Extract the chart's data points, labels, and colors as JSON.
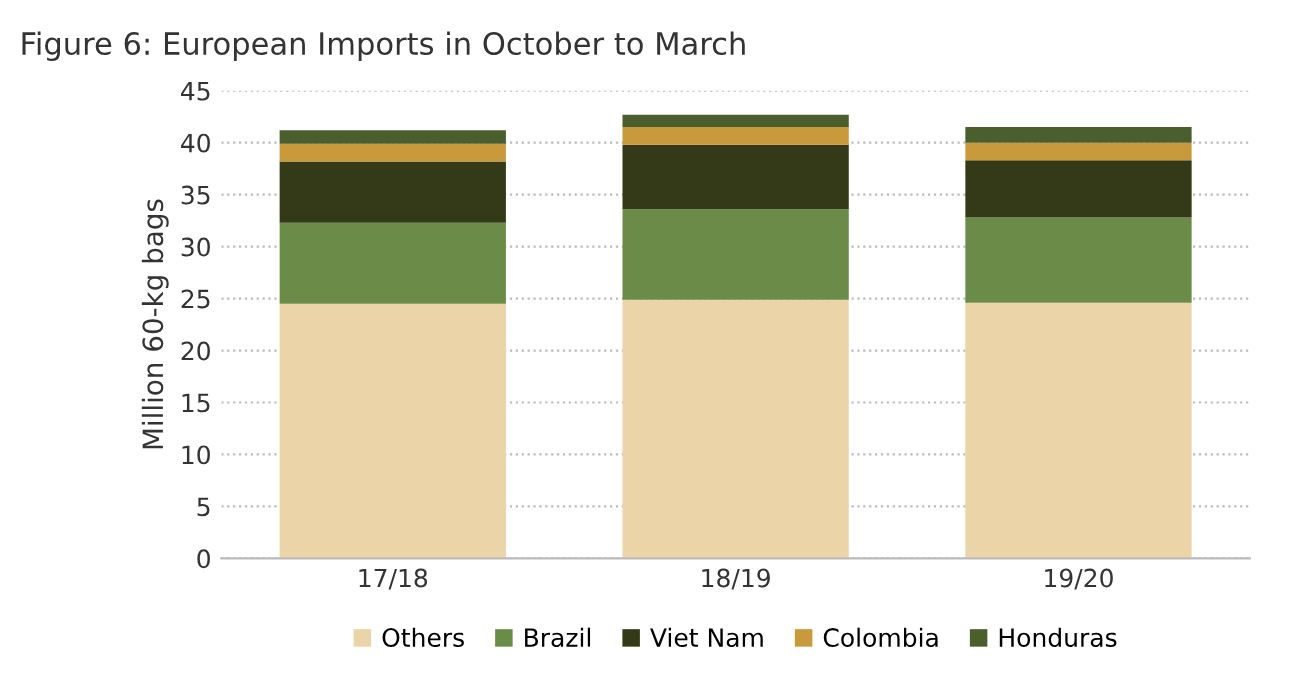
{
  "chart_data": {
    "type": "bar",
    "title": "Figure 6: European Imports in October to March",
    "ylabel": "Million 60-kg bags",
    "categories": [
      "17/18",
      "18/19",
      "19/20"
    ],
    "stacked": true,
    "series": [
      {
        "name": "Others",
        "color": "#ebd4a8",
        "values": [
          24.5,
          24.9,
          24.6
        ]
      },
      {
        "name": "Brazil",
        "color": "#6a8c48",
        "values": [
          7.8,
          8.7,
          8.2
        ]
      },
      {
        "name": "Viet Nam",
        "color": "#343a17",
        "values": [
          5.9,
          6.2,
          5.5
        ]
      },
      {
        "name": "Colombia",
        "color": "#c99a3c",
        "values": [
          1.7,
          1.7,
          1.7
        ]
      },
      {
        "name": "Honduras",
        "color": "#4a5e2e",
        "values": [
          1.3,
          1.2,
          1.5
        ]
      }
    ],
    "ylim": [
      0,
      45
    ],
    "yticks": [
      0,
      5,
      10,
      15,
      20,
      25,
      30,
      35,
      40,
      45
    ],
    "grid": "y",
    "legend": "bottom"
  }
}
